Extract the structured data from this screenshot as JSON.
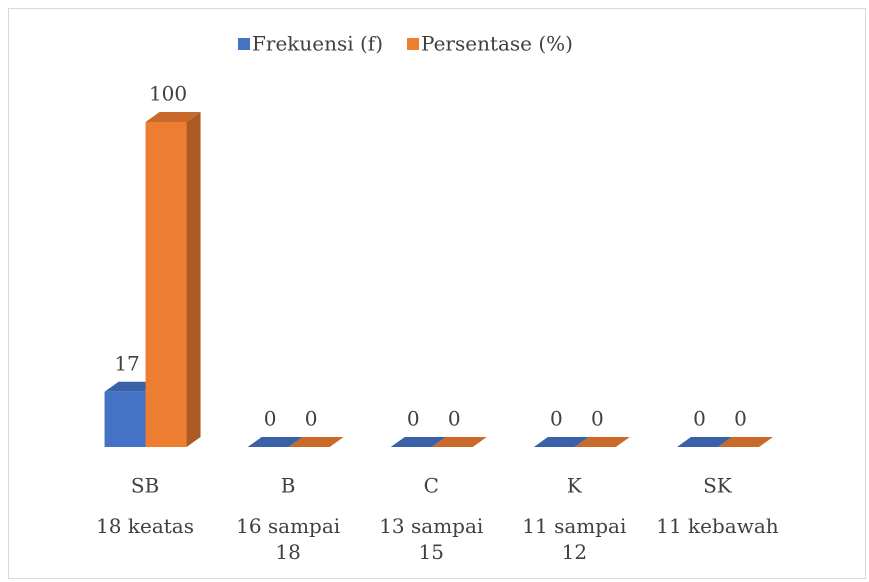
{
  "chart_data": {
    "type": "bar3d",
    "categories": [
      "SB",
      "B",
      "C",
      "K",
      "SK"
    ],
    "subcategories": [
      "18 keatas",
      "16 sampai 18",
      "13 sampai 15",
      "11 sampai 12",
      "11 kebawah"
    ],
    "series": [
      {
        "name": "Frekuensi (f)",
        "color": "#4472c4",
        "values": [
          17,
          0,
          0,
          0,
          0
        ]
      },
      {
        "name": "Persentase (%)",
        "color": "#ed7d31",
        "values": [
          100,
          0,
          0,
          0,
          0
        ]
      }
    ],
    "ylim": [
      0,
      100
    ],
    "legend": "top"
  }
}
